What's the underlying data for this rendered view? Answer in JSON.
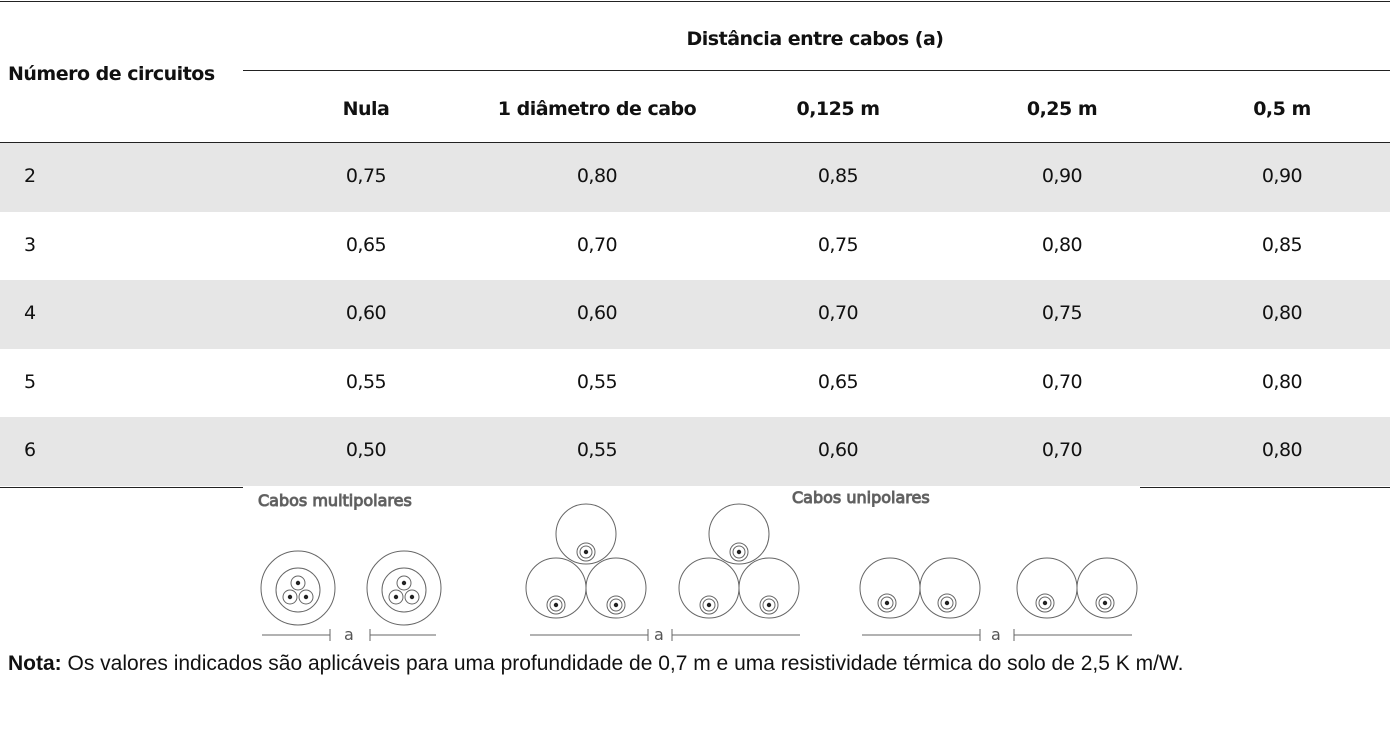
{
  "header": {
    "group_title": "Distância entre cabos (a)",
    "row_label": "Número de circuitos",
    "columns": [
      "Nula",
      "1 diâmetro de cabo",
      "0,125 m",
      "0,25 m",
      "0,5 m"
    ]
  },
  "rows": [
    [
      "2",
      "0,75",
      "0,80",
      "0,85",
      "0,90",
      "0,90"
    ],
    [
      "3",
      "0,65",
      "0,70",
      "0,75",
      "0,80",
      "0,85"
    ],
    [
      "4",
      "0,60",
      "0,60",
      "0,70",
      "0,75",
      "0,80"
    ],
    [
      "5",
      "0,55",
      "0,55",
      "0,65",
      "0,70",
      "0,80"
    ],
    [
      "6",
      "0,50",
      "0,55",
      "0,60",
      "0,70",
      "0,80"
    ]
  ],
  "figure": {
    "multipolar_label": "Cabos multipolares",
    "unipolar_label": "Cabos unipolares",
    "spacing_labels": [
      "a",
      "a",
      "a"
    ]
  },
  "note": {
    "label": "Nota:",
    "text": "Os valores indicados são aplicáveis para uma profundidade de 0,7 m e uma resistividade térmica do solo de 2,5 K m/W."
  }
}
